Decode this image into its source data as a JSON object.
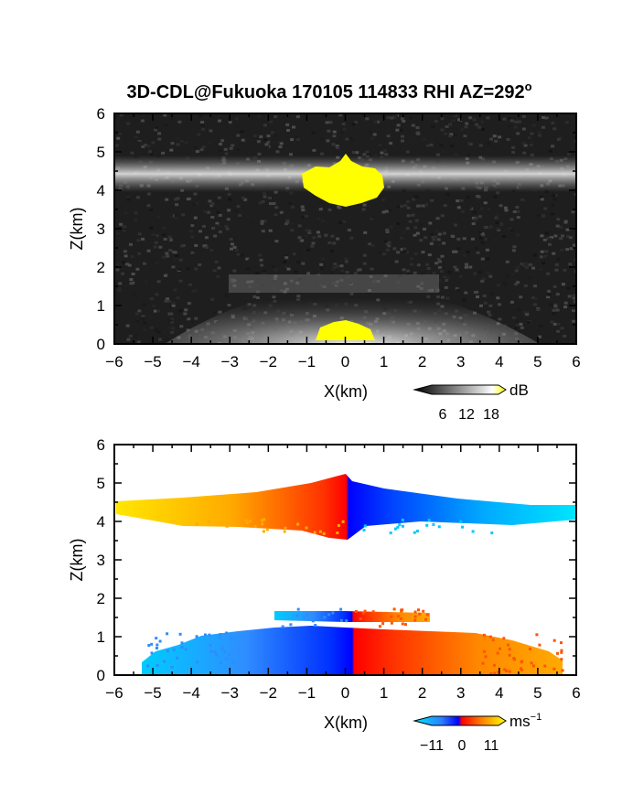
{
  "title_prefix": "3D-CDL@Fukuoka 170105 114833 RHI AZ=292",
  "title_sup": "o",
  "colors": {
    "signal_high": "#ffff00",
    "vel_neg_far": "#00e5ff",
    "vel_neg_near": "#0000ff",
    "vel_pos_near": "#ff0000",
    "vel_pos_far": "#ffdd00"
  },
  "chart_data": [
    {
      "type": "heatmap",
      "name": "intensity-rhi",
      "xlabel": "X(km)",
      "ylabel": "Z(km)",
      "xlim": [
        -6,
        6
      ],
      "ylim": [
        0,
        6
      ],
      "xticks": [
        -6,
        -5,
        -4,
        -3,
        -2,
        -1,
        0,
        1,
        2,
        3,
        4,
        5,
        6
      ],
      "yticks": [
        0,
        1,
        2,
        3,
        4,
        5,
        6
      ],
      "colorbar": {
        "ticks": [
          "6",
          "12",
          "18"
        ],
        "unit": "dB",
        "colormap": "grayscale-to-yellow"
      },
      "features": [
        {
          "label": "cloud layer",
          "z_km": 4.4,
          "x_range": [
            -6,
            6
          ]
        },
        {
          "label": "strong echo",
          "z_range": [
            3.7,
            5.0
          ],
          "x_range": [
            -1.1,
            1.0
          ]
        },
        {
          "label": "lower layer",
          "z_range": [
            0.8,
            1.7
          ],
          "x_range": [
            -3,
            2.2
          ]
        }
      ]
    },
    {
      "type": "heatmap",
      "name": "doppler-velocity-rhi",
      "xlabel": "X(km)",
      "ylabel": "Z(km)",
      "xlim": [
        -6,
        6
      ],
      "ylim": [
        0,
        6
      ],
      "xticks": [
        -6,
        -5,
        -4,
        -3,
        -2,
        -1,
        0,
        1,
        2,
        3,
        4,
        5,
        6
      ],
      "yticks": [
        0,
        1,
        2,
        3,
        4,
        5,
        6
      ],
      "colorbar": {
        "ticks": [
          "−11",
          "0",
          "11"
        ],
        "unit": "ms",
        "unit_sup": "−1",
        "range": [
          -11,
          11
        ]
      },
      "features": [
        {
          "label": "upper layer",
          "z_range": [
            3.5,
            5.2
          ],
          "x_range": [
            -6,
            6
          ],
          "left_velocity": 11,
          "right_velocity": -11
        },
        {
          "label": "lower layer",
          "z_range": [
            0,
            1.6
          ],
          "x_range": [
            -5.5,
            5.8
          ],
          "left_velocity": -11,
          "right_velocity": 11
        }
      ]
    }
  ]
}
